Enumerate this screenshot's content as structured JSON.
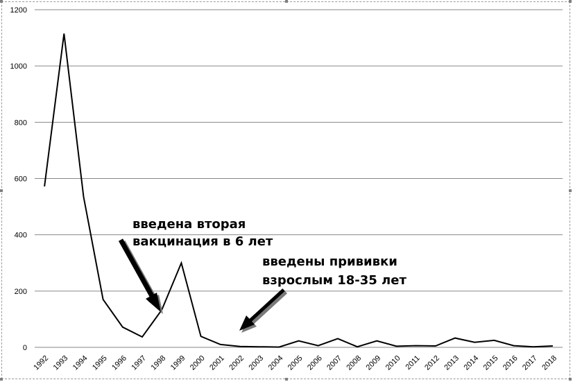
{
  "chart_data": {
    "type": "line",
    "title": "",
    "xlabel": "",
    "ylabel": "",
    "ylim": [
      0,
      1200
    ],
    "yticks": [
      0,
      200,
      400,
      600,
      800,
      1000,
      1200
    ],
    "grid": "horizontal",
    "legend": "none",
    "line_color": "#000000",
    "x": [
      "1992",
      "1993",
      "1994",
      "1995",
      "1996",
      "1997",
      "1998",
      "1999",
      "2000",
      "2001",
      "2002",
      "2003",
      "2004",
      "2005",
      "2006",
      "2007",
      "2008",
      "2009",
      "2010",
      "2011",
      "2012",
      "2013",
      "2014",
      "2015",
      "2016",
      "2017",
      "2018"
    ],
    "series": [
      {
        "values": [
          572,
          1115,
          535,
          170,
          72,
          37,
          133,
          300,
          39,
          10,
          3,
          2,
          1,
          23,
          6,
          31,
          2,
          23,
          4,
          6,
          5,
          33,
          18,
          25,
          6,
          2,
          5
        ]
      }
    ],
    "annotations": [
      {
        "lines": [
          "введена вторая",
          "вакцинация в 6 лет"
        ],
        "points_to": "1998"
      },
      {
        "lines": [
          "введены прививки",
          "взрослым 18-35 лет"
        ],
        "points_to": "2002"
      }
    ]
  }
}
